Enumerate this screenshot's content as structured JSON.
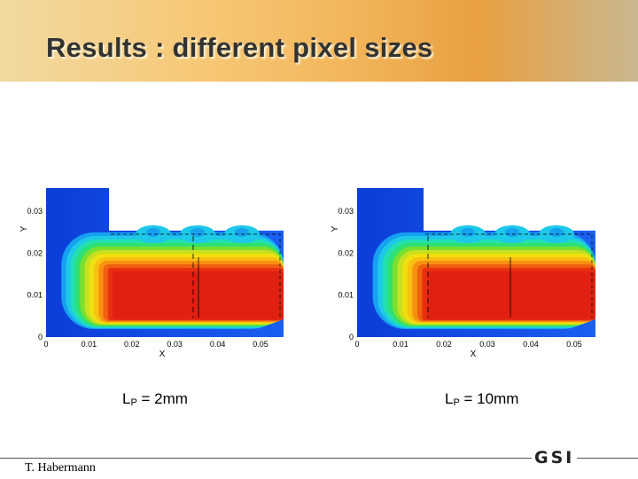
{
  "header": {
    "title": "Results : different pixel sizes"
  },
  "plots": [
    {
      "xlabel": "X",
      "ylabel": "Y",
      "xticks": [
        0,
        0.01,
        0.02,
        0.03,
        0.04,
        0.05
      ],
      "yticks": [
        0,
        0.01,
        0.02,
        0.03
      ],
      "caption": {
        "main": "L",
        "sub": "P",
        "rest": " = 2mm"
      }
    },
    {
      "xlabel": "X",
      "ylabel": "Y",
      "xticks": [
        0,
        0.01,
        0.02,
        0.03,
        0.04,
        0.05
      ],
      "yticks": [
        0,
        0.01,
        0.02,
        0.03
      ],
      "caption": {
        "main": "L",
        "sub": "P",
        "rest": " = 10mm"
      }
    }
  ],
  "footer": {
    "author": "T. Habermann",
    "logo": "GSI"
  }
}
